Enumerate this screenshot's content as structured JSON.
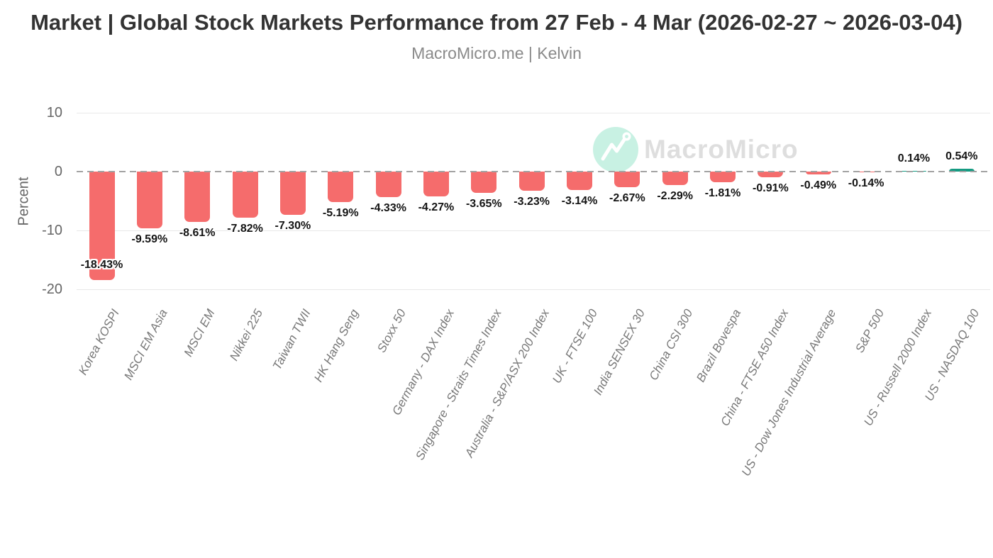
{
  "header": {
    "title": "Market | Global Stock Markets Performance from 27 Feb - 4 Mar (2026-02-27 ~ 2026-03-04)",
    "subtitle": "MacroMicro.me | Kelvin"
  },
  "watermark": {
    "brand": "MacroMicro",
    "icon": "macromicro-logo-icon",
    "circle_color": "#c8f1e3",
    "text_color": "#dedede"
  },
  "chart_data": {
    "type": "bar",
    "title": "Market | Global Stock Markets Performance from 27 Feb - 4 Mar (2026-02-27 ~ 2026-03-04)",
    "subtitle": "MacroMicro.me | Kelvin",
    "xlabel": "",
    "ylabel": "Percent",
    "ylim": [
      -20,
      10
    ],
    "yticks": [
      10,
      0,
      -10,
      -20
    ],
    "ytick_labels": [
      "10",
      "0",
      "-10",
      "-20"
    ],
    "grid": true,
    "zero_line_style": "dashed",
    "legend": "none",
    "categories": [
      "Korea KOSPI",
      "MSCI EM Asia",
      "MSCI EM",
      "Nikkei 225",
      "Taiwan TWII",
      "HK Hang Seng",
      "Stoxx 50",
      "Germany - DAX Index",
      "Singapore - Straits Times Index",
      "Australia - S&P/ASX 200 Index",
      "UK - FTSE 100",
      "India SENSEX 30",
      "China CSI 300",
      "Brazil Bovespa",
      "China - FTSE A50 Index",
      "US - Dow Jones Industrial Average",
      "S&P 500",
      "US - Russell 2000 Index",
      "US - NASDAQ 100"
    ],
    "values": [
      -18.43,
      -9.59,
      -8.61,
      -7.82,
      -7.3,
      -5.19,
      -4.33,
      -4.27,
      -3.65,
      -3.23,
      -3.14,
      -2.67,
      -2.29,
      -1.81,
      -0.91,
      -0.49,
      -0.14,
      0.14,
      0.54
    ],
    "value_labels": [
      "-18.43%",
      "-9.59%",
      "-8.61%",
      "-7.82%",
      "-7.30%",
      "-5.19%",
      "-4.33%",
      "-4.27%",
      "-3.65%",
      "-3.23%",
      "-3.14%",
      "-2.67%",
      "-2.29%",
      "-1.81%",
      "-0.91%",
      "-0.49%",
      "-0.14%",
      "0.14%",
      "0.54%"
    ],
    "colors": {
      "negative": "#f56c6c",
      "positive": "#169b82"
    }
  }
}
